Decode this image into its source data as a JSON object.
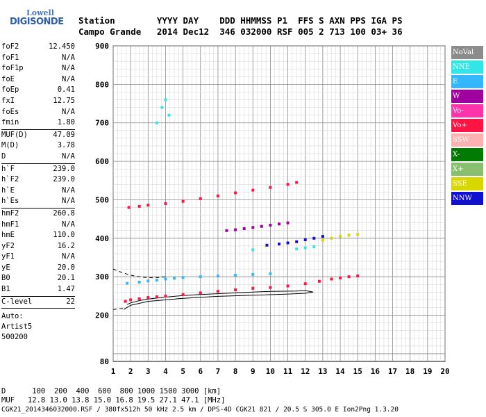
{
  "logo": {
    "line1": "Lowell",
    "line2": "DIGISONDE"
  },
  "header": {
    "line1": "Station        YYYY DAY    DDD HHMMSS P1  FFS S AXN PPS IGA PS",
    "line2": "Campo Grande   2014 Dec12  346 032000 RSF 005 2 713 100 03+ 36"
  },
  "params": [
    {
      "k": "foF2",
      "v": "12.450"
    },
    {
      "k": "foF1",
      "v": "N/A"
    },
    {
      "k": "foF1p",
      "v": "N/A"
    },
    {
      "k": "foE",
      "v": "N/A"
    },
    {
      "k": "foEp",
      "v": "0.41"
    },
    {
      "k": "fxI",
      "v": "12.75"
    },
    {
      "k": "foEs",
      "v": "N/A"
    },
    {
      "k": "fmin",
      "v": "1.80",
      "sep": true
    },
    {
      "k": "MUF(D)",
      "v": "47.09"
    },
    {
      "k": "M(D)",
      "v": "3.78"
    },
    {
      "k": "D",
      "v": "N/A",
      "sep": true
    },
    {
      "k": "h`F",
      "v": "239.0"
    },
    {
      "k": "h`F2",
      "v": "239.0"
    },
    {
      "k": "h`E",
      "v": "N/A"
    },
    {
      "k": "h`Es",
      "v": "N/A",
      "sep": true
    },
    {
      "k": "hmF2",
      "v": "260.8"
    },
    {
      "k": "hmF1",
      "v": "N/A"
    },
    {
      "k": "hmE",
      "v": "110.0"
    },
    {
      "k": "yF2",
      "v": "16.2"
    },
    {
      "k": "yF1",
      "v": "N/A"
    },
    {
      "k": "yE",
      "v": "20.0"
    },
    {
      "k": "B0",
      "v": "20.1"
    },
    {
      "k": "B1",
      "v": "1.47",
      "sep": true
    },
    {
      "k": "C-level",
      "v": "22",
      "sep": true
    }
  ],
  "auto": {
    "l1": "Auto:",
    "l2": "Artist5",
    "l3": "500200"
  },
  "legend": [
    {
      "label": "NoVal",
      "color": "#8c8c8c"
    },
    {
      "label": "NNE",
      "color": "#33e6e6"
    },
    {
      "label": "E",
      "color": "#33b8ff"
    },
    {
      "label": "W",
      "color": "#a000a0"
    },
    {
      "label": "Vo-",
      "color": "#ff33aa"
    },
    {
      "label": "Vo+",
      "color": "#ff1444"
    },
    {
      "label": "SSW",
      "color": "#ffb0b0"
    },
    {
      "label": "X-",
      "color": "#007a00"
    },
    {
      "label": "X+",
      "color": "#88c070"
    },
    {
      "label": "SSE",
      "color": "#d8d800"
    },
    {
      "label": "NNW",
      "color": "#1010d0"
    }
  ],
  "footer": {
    "line1": "D      100  200  400  600  800 1000 1500 3000 [km]",
    "line2": "MUF   12.8 13.0 13.8 15.0 16.8 19.5 27.1 47.1 [MHz]",
    "line3": "CGK21_2014346032000.RSF / 380fx512h 50 kHz 2.5 km / DPS-4D CGK21 821 / 20.5 S 305.0 E Ion2Png 1.3.20"
  },
  "chart_data": {
    "type": "scatter",
    "title": "",
    "xlabel": "",
    "ylabel": "",
    "xlim": [
      1,
      20
    ],
    "ylim": [
      80,
      900
    ],
    "x_ticks": [
      1,
      2,
      3,
      4,
      5,
      6,
      7,
      8,
      9,
      10,
      11,
      12,
      13,
      14,
      15,
      16,
      17,
      18,
      19,
      20
    ],
    "y_ticks": [
      80,
      200,
      300,
      400,
      500,
      600,
      700,
      800,
      900
    ],
    "series": [
      {
        "name": "Vo+",
        "color": "#ff1444",
        "x": [
          1.7,
          2.0,
          2.5,
          3.0,
          3.5,
          4.0,
          5.0,
          6.0,
          7.0,
          8.0,
          9.0,
          10.0,
          11.0,
          12.0,
          12.8,
          13.5,
          14.0,
          14.5,
          15.0
        ],
        "y": [
          236,
          240,
          243,
          246,
          248,
          250,
          254,
          258,
          262,
          266,
          270,
          272,
          276,
          282,
          288,
          294,
          297,
          300,
          302
        ]
      },
      {
        "name": "Vo+",
        "color": "#ff1444",
        "x": [
          1.9,
          2.5,
          3.0,
          4.0,
          5.0,
          6.0,
          7.0,
          8.0,
          9.0,
          10.0,
          11.0,
          11.5
        ],
        "y": [
          480,
          483,
          486,
          490,
          496,
          503,
          510,
          518,
          525,
          532,
          540,
          545
        ]
      },
      {
        "name": "E",
        "color": "#33b8ff",
        "x": [
          1.8,
          2.5,
          3.0,
          3.5,
          4.0,
          4.5,
          5.0,
          6.0,
          7.0,
          8.0,
          9.0,
          10.0
        ],
        "y": [
          283,
          286,
          289,
          291,
          294,
          296,
          298,
          300,
          302,
          304,
          306,
          308
        ]
      },
      {
        "name": "W",
        "color": "#a000a0",
        "x": [
          7.5,
          8.0,
          8.5,
          9.0,
          9.5,
          10.0,
          10.5,
          11.0
        ],
        "y": [
          420,
          422,
          425,
          428,
          431,
          434,
          437,
          440
        ]
      },
      {
        "name": "NNW",
        "color": "#1010d0",
        "x": [
          9.8,
          10.5,
          11.0,
          11.5,
          12.0,
          12.5,
          13.0
        ],
        "y": [
          382,
          385,
          388,
          391,
          396,
          400,
          405
        ]
      },
      {
        "name": "SSE",
        "color": "#d8d800",
        "x": [
          13.0,
          13.5,
          14.0,
          14.5,
          15.0
        ],
        "y": [
          395,
          400,
          405,
          408,
          410
        ]
      },
      {
        "name": "NNE",
        "color": "#33e6e6",
        "x": [
          3.5,
          3.8,
          4.0,
          4.2,
          9.0,
          11.5,
          12.0,
          12.5
        ],
        "y": [
          700,
          740,
          760,
          720,
          370,
          372,
          375,
          378
        ]
      }
    ],
    "profile_curve": {
      "x": [
        1.8,
        2.0,
        2.5,
        3.0,
        4.0,
        5.0,
        6.0,
        8.0,
        10.0,
        11.5,
        12.0,
        12.45,
        12.0,
        11.0,
        9.0,
        7.0,
        5.0,
        3.0,
        2.0,
        1.6
      ],
      "y": [
        228,
        232,
        238,
        242,
        247,
        251,
        254,
        258,
        262,
        263,
        264,
        260,
        257,
        255,
        252,
        249,
        244,
        236,
        226,
        215
      ]
    }
  }
}
